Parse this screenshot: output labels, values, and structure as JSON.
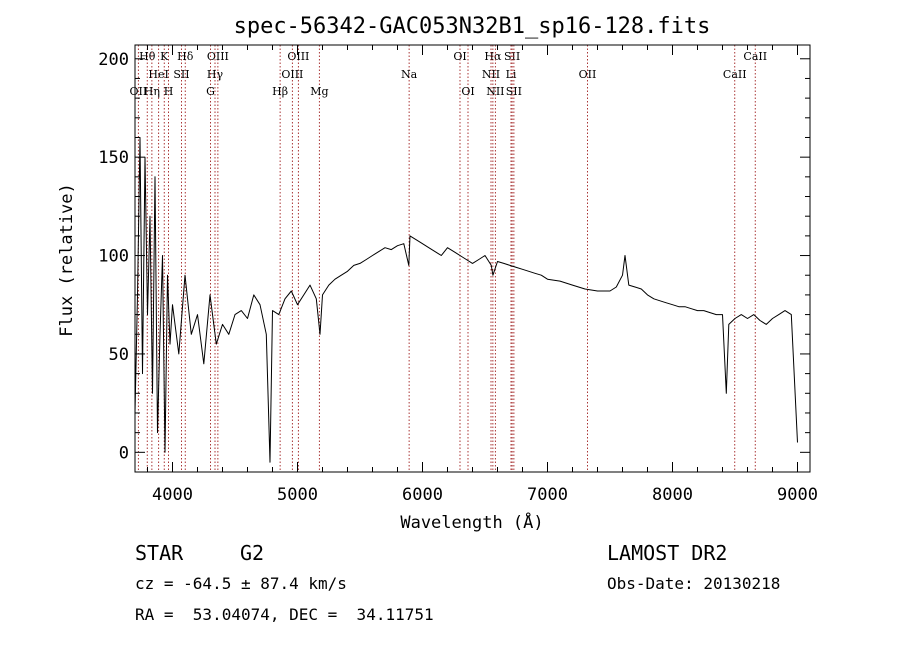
{
  "chart_data": {
    "type": "line",
    "title": "spec-56342-GAC053N32B1_sp16-128.fits",
    "xlabel": "Wavelength (Å)",
    "ylabel": "Flux (relative)",
    "xlim": [
      3700,
      9100
    ],
    "ylim": [
      -10,
      207
    ],
    "x_ticks": [
      4000,
      5000,
      6000,
      7000,
      8000,
      9000
    ],
    "y_ticks": [
      0,
      50,
      100,
      150,
      200
    ],
    "grid": false,
    "series": [
      {
        "color": "#000000",
        "x": [
          3700,
          3720,
          3740,
          3760,
          3780,
          3800,
          3820,
          3840,
          3860,
          3880,
          3900,
          3920,
          3940,
          3960,
          3980,
          4000,
          4050,
          4100,
          4150,
          4200,
          4250,
          4300,
          4350,
          4400,
          4450,
          4500,
          4550,
          4600,
          4650,
          4700,
          4750,
          4780,
          4800,
          4850,
          4900,
          4950,
          5000,
          5050,
          5100,
          5150,
          5180,
          5200,
          5250,
          5300,
          5350,
          5400,
          5450,
          5500,
          5550,
          5600,
          5650,
          5700,
          5750,
          5800,
          5850,
          5890,
          5900,
          5950,
          6000,
          6050,
          6100,
          6150,
          6200,
          6250,
          6300,
          6350,
          6400,
          6450,
          6500,
          6550,
          6563,
          6600,
          6650,
          6700,
          6750,
          6800,
          6850,
          6900,
          6950,
          7000,
          7100,
          7200,
          7300,
          7400,
          7500,
          7550,
          7600,
          7620,
          7650,
          7700,
          7750,
          7800,
          7850,
          7900,
          7950,
          8000,
          8050,
          8100,
          8150,
          8200,
          8250,
          8300,
          8350,
          8400,
          8430,
          8450,
          8500,
          8550,
          8600,
          8650,
          8700,
          8750,
          8800,
          8850,
          8900,
          8950,
          9000
        ],
        "y": [
          20,
          80,
          160,
          40,
          150,
          70,
          120,
          30,
          140,
          10,
          60,
          100,
          0,
          90,
          55,
          75,
          50,
          90,
          60,
          70,
          45,
          80,
          55,
          65,
          60,
          70,
          72,
          68,
          80,
          75,
          60,
          -5,
          72,
          70,
          78,
          82,
          75,
          80,
          85,
          78,
          60,
          80,
          85,
          88,
          90,
          92,
          95,
          96,
          98,
          100,
          102,
          104,
          103,
          105,
          106,
          95,
          110,
          108,
          106,
          104,
          102,
          100,
          104,
          102,
          100,
          98,
          96,
          98,
          100,
          95,
          90,
          97,
          96,
          95,
          94,
          93,
          92,
          91,
          90,
          88,
          87,
          85,
          83,
          82,
          82,
          84,
          90,
          100,
          85,
          84,
          83,
          80,
          78,
          77,
          76,
          75,
          74,
          74,
          73,
          72,
          72,
          71,
          70,
          70,
          30,
          65,
          68,
          70,
          68,
          70,
          67,
          65,
          68,
          70,
          72,
          70,
          5
        ]
      }
    ],
    "spectral_lines": [
      {
        "label": "Hθ",
        "x": 3798,
        "row": 0
      },
      {
        "label": "K",
        "x": 3934,
        "row": 0
      },
      {
        "label": "Hδ",
        "x": 4102,
        "row": 0
      },
      {
        "label": "OIII",
        "x": 4363,
        "row": 0
      },
      {
        "label": "OIII",
        "x": 5007,
        "row": 0
      },
      {
        "label": "OI",
        "x": 6300,
        "row": 0
      },
      {
        "label": "Hα",
        "x": 6563,
        "row": 0
      },
      {
        "label": "SII",
        "x": 6717,
        "row": 0
      },
      {
        "label": "CaII",
        "x": 8662,
        "row": 0
      },
      {
        "label": "HeI",
        "x": 3889,
        "row": 1
      },
      {
        "label": "SII",
        "x": 4072,
        "row": 1
      },
      {
        "label": "Hγ",
        "x": 4340,
        "row": 1
      },
      {
        "label": "OIII",
        "x": 4959,
        "row": 1
      },
      {
        "label": "Na",
        "x": 5893,
        "row": 1
      },
      {
        "label": "NII",
        "x": 6548,
        "row": 1
      },
      {
        "label": "Li",
        "x": 6708,
        "row": 1
      },
      {
        "label": "OII",
        "x": 7320,
        "row": 1
      },
      {
        "label": "CaII",
        "x": 8498,
        "row": 1
      },
      {
        "label": "OII",
        "x": 3727,
        "row": 2
      },
      {
        "label": "Hη",
        "x": 3835,
        "row": 2
      },
      {
        "label": "H",
        "x": 3968,
        "row": 2
      },
      {
        "label": "G",
        "x": 4304,
        "row": 2
      },
      {
        "label": "Hβ",
        "x": 4861,
        "row": 2
      },
      {
        "label": "Mg",
        "x": 5175,
        "row": 2
      },
      {
        "label": "OI",
        "x": 6364,
        "row": 2
      },
      {
        "label": "NII",
        "x": 6583,
        "row": 2
      },
      {
        "label": "SII",
        "x": 6731,
        "row": 2
      }
    ]
  },
  "info": {
    "class": "STAR",
    "subclass": "G2",
    "survey": "LAMOST DR2",
    "cz": "cz = -64.5 ± 87.4 km/s",
    "obs_date": "Obs-Date: 20130218",
    "coords": "RA =  53.04074, DEC =  34.11751"
  }
}
